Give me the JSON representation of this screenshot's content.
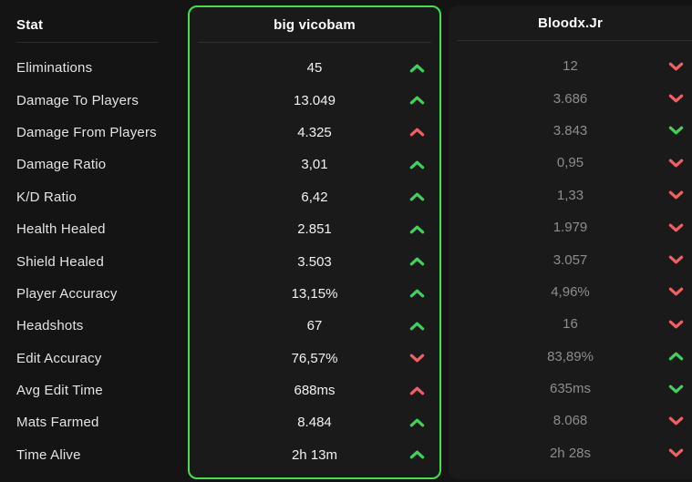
{
  "colors": {
    "page_bg": "#141414",
    "card_bg": "#1a1a1a",
    "accent_green_border": "#45e050",
    "caret_green": "#3fd15e",
    "caret_red": "#f25f63"
  },
  "table": {
    "stat_header": "Stat",
    "player1": {
      "name": "big vicobam",
      "highlighted": true
    },
    "player2": {
      "name": "Bloodx.Jr",
      "highlighted": false
    },
    "rows": [
      {
        "stat": "Eliminations",
        "p1": "45",
        "p1_dir": "up",
        "p1_color": "green",
        "p2": "12",
        "p2_dir": "down",
        "p2_color": "red"
      },
      {
        "stat": "Damage To Players",
        "p1": "13.049",
        "p1_dir": "up",
        "p1_color": "green",
        "p2": "3.686",
        "p2_dir": "down",
        "p2_color": "red"
      },
      {
        "stat": "Damage From Players",
        "p1": "4.325",
        "p1_dir": "up",
        "p1_color": "red",
        "p2": "3.843",
        "p2_dir": "down",
        "p2_color": "green"
      },
      {
        "stat": "Damage Ratio",
        "p1": "3,01",
        "p1_dir": "up",
        "p1_color": "green",
        "p2": "0,95",
        "p2_dir": "down",
        "p2_color": "red"
      },
      {
        "stat": "K/D Ratio",
        "p1": "6,42",
        "p1_dir": "up",
        "p1_color": "green",
        "p2": "1,33",
        "p2_dir": "down",
        "p2_color": "red"
      },
      {
        "stat": "Health Healed",
        "p1": "2.851",
        "p1_dir": "up",
        "p1_color": "green",
        "p2": "1.979",
        "p2_dir": "down",
        "p2_color": "red"
      },
      {
        "stat": "Shield Healed",
        "p1": "3.503",
        "p1_dir": "up",
        "p1_color": "green",
        "p2": "3.057",
        "p2_dir": "down",
        "p2_color": "red"
      },
      {
        "stat": "Player Accuracy",
        "p1": "13,15%",
        "p1_dir": "up",
        "p1_color": "green",
        "p2": "4,96%",
        "p2_dir": "down",
        "p2_color": "red"
      },
      {
        "stat": "Headshots",
        "p1": "67",
        "p1_dir": "up",
        "p1_color": "green",
        "p2": "16",
        "p2_dir": "down",
        "p2_color": "red"
      },
      {
        "stat": "Edit Accuracy",
        "p1": "76,57%",
        "p1_dir": "down",
        "p1_color": "red",
        "p2": "83,89%",
        "p2_dir": "up",
        "p2_color": "green"
      },
      {
        "stat": "Avg Edit Time",
        "p1": "688ms",
        "p1_dir": "up",
        "p1_color": "red",
        "p2": "635ms",
        "p2_dir": "down",
        "p2_color": "green"
      },
      {
        "stat": "Mats Farmed",
        "p1": "8.484",
        "p1_dir": "up",
        "p1_color": "green",
        "p2": "8.068",
        "p2_dir": "down",
        "p2_color": "red"
      },
      {
        "stat": "Time Alive",
        "p1": "2h 13m",
        "p1_dir": "up",
        "p1_color": "green",
        "p2": "2h 28s",
        "p2_dir": "down",
        "p2_color": "red"
      }
    ]
  }
}
